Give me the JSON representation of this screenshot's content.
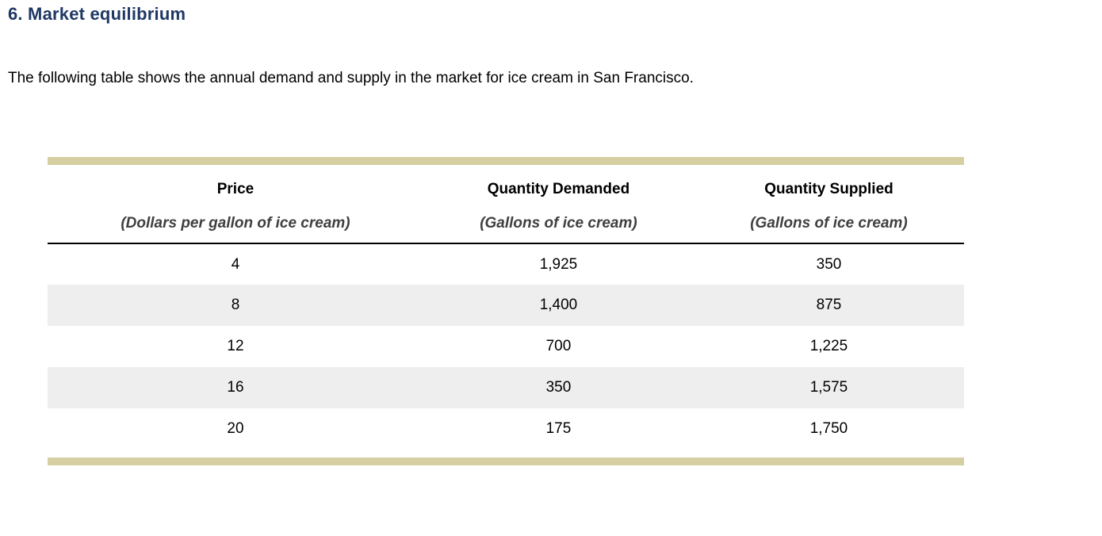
{
  "page": {
    "title": "6. Market equilibrium",
    "intro": "The following table shows the annual demand and supply in the market for ice cream in San Francisco."
  },
  "colors": {
    "title_text": "#1f3864",
    "accent_bar": "#d6cfa2",
    "alt_row": "#eeeeee",
    "subheader_text": "#3f3f3f",
    "header_rule": "#000000"
  },
  "table": {
    "columns": [
      {
        "label": "Price",
        "sublabel": "(Dollars per gallon of ice cream)"
      },
      {
        "label": "Quantity Demanded",
        "sublabel": "(Gallons of ice cream)"
      },
      {
        "label": "Quantity Supplied",
        "sublabel": "(Gallons of ice cream)"
      }
    ],
    "rows": [
      [
        "4",
        "1,925",
        "350"
      ],
      [
        "8",
        "1,400",
        "875"
      ],
      [
        "12",
        "700",
        "1,225"
      ],
      [
        "16",
        "350",
        "1,575"
      ],
      [
        "20",
        "175",
        "1,750"
      ]
    ]
  },
  "chart_data": {
    "type": "table",
    "title": "6. Market equilibrium",
    "columns": [
      "Price (Dollars per gallon of ice cream)",
      "Quantity Demanded (Gallons of ice cream)",
      "Quantity Supplied (Gallons of ice cream)"
    ],
    "price": [
      4,
      8,
      12,
      16,
      20
    ],
    "quantity_demanded": [
      1925,
      1400,
      700,
      350,
      175
    ],
    "quantity_supplied": [
      350,
      875,
      1225,
      1575,
      1750
    ]
  }
}
